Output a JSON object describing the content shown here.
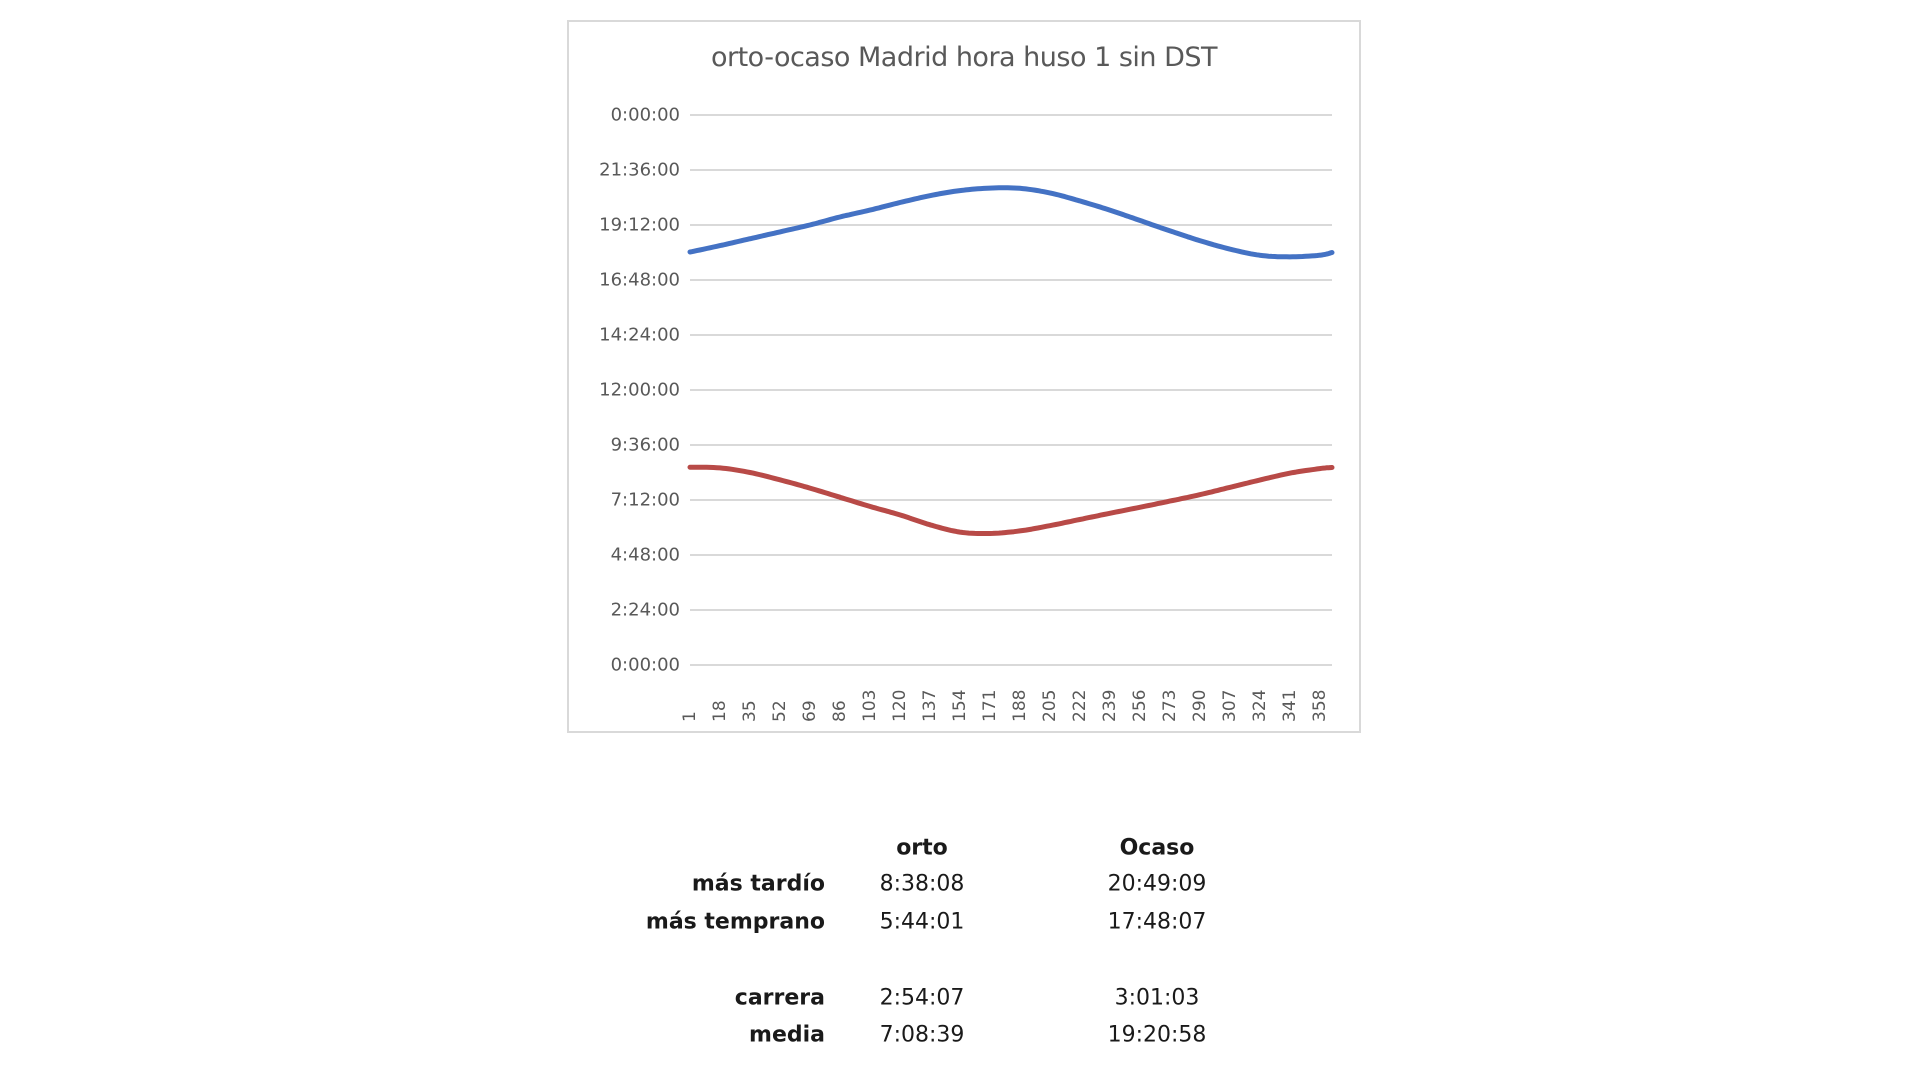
{
  "chart_data": {
    "type": "line",
    "title": "orto-ocaso Madrid hora huso 1 sin DST",
    "xlabel": "",
    "ylabel": "",
    "x_tick_labels": [
      "1",
      "18",
      "35",
      "52",
      "69",
      "86",
      "103",
      "120",
      "137",
      "154",
      "171",
      "188",
      "205",
      "222",
      "239",
      "256",
      "273",
      "290",
      "307",
      "324",
      "341",
      "358"
    ],
    "y_tick_labels": [
      "0:00:00",
      "2:24:00",
      "4:48:00",
      "7:12:00",
      "9:36:00",
      "12:00:00",
      "14:24:00",
      "16:48:00",
      "19:12:00",
      "21:36:00",
      "0:00:00"
    ],
    "ylim_hours": [
      0,
      24
    ],
    "xlim_days": [
      1,
      365
    ],
    "grid": true,
    "legend": "none",
    "x": [
      1,
      18,
      35,
      52,
      69,
      86,
      103,
      120,
      137,
      154,
      171,
      188,
      205,
      222,
      239,
      256,
      273,
      290,
      307,
      324,
      341,
      358,
      365
    ],
    "series": [
      {
        "name": "ocaso",
        "color": "#4472C4",
        "values_hours": [
          18.02,
          18.3,
          18.6,
          18.9,
          19.2,
          19.55,
          19.85,
          20.18,
          20.48,
          20.7,
          20.81,
          20.8,
          20.6,
          20.25,
          19.85,
          19.4,
          18.95,
          18.52,
          18.15,
          17.88,
          17.81,
          17.88,
          18.0
        ]
      },
      {
        "name": "orto",
        "color": "#B84A47",
        "values_hours": [
          8.63,
          8.6,
          8.4,
          8.08,
          7.72,
          7.32,
          6.92,
          6.55,
          6.12,
          5.8,
          5.74,
          5.85,
          6.08,
          6.35,
          6.62,
          6.88,
          7.15,
          7.43,
          7.75,
          8.07,
          8.37,
          8.57,
          8.62
        ]
      }
    ]
  },
  "summary_table": {
    "headers": [
      "",
      "orto",
      "Ocaso"
    ],
    "rows": [
      {
        "label": "más tardío",
        "orto": "8:38:08",
        "ocaso": "20:49:09"
      },
      {
        "label": "más temprano",
        "orto": "5:44:01",
        "ocaso": "17:48:07"
      },
      {
        "label": "carrera",
        "orto": "2:54:07",
        "ocaso": "3:01:03"
      },
      {
        "label": "media",
        "orto": "7:08:39",
        "ocaso": "19:20:58"
      }
    ]
  },
  "colors": {
    "gridline": "#d9d9d9",
    "axis_text": "#595959",
    "frame": "#d9d9d9"
  }
}
